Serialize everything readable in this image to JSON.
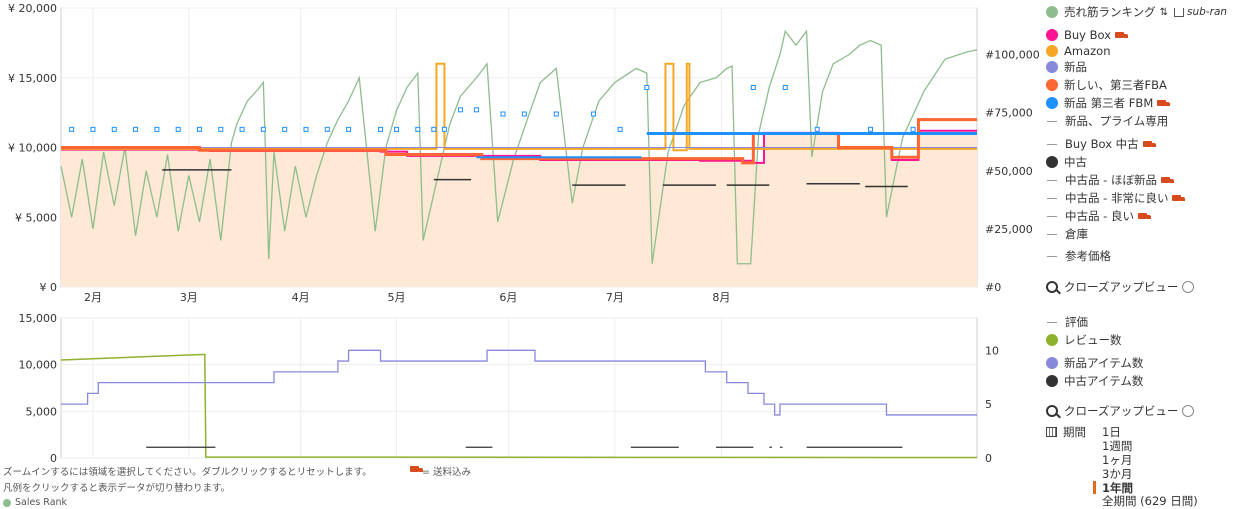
{
  "chart_data": [
    {
      "type": "line",
      "title": "",
      "x_months": [
        "2月",
        "3月",
        "4月",
        "5月",
        "6月",
        "7月",
        "8月"
      ],
      "y_left": {
        "ticks": [
          "¥ 0",
          "¥ 5,000",
          "¥ 10,000",
          "¥ 15,000",
          "¥ 20,000"
        ],
        "range": [
          0,
          20000
        ]
      },
      "y_right": {
        "ticks": [
          "#0",
          "#25,000",
          "#50,000",
          "#75,000",
          "#100,000"
        ],
        "range": [
          0,
          120000
        ]
      },
      "series": [
        {
          "name": "売れ筋ランキング",
          "color": "#8fbc8f",
          "axis": "right",
          "values": [
            [
              0.0,
              52000
            ],
            [
              0.2,
              30000
            ],
            [
              0.4,
              55000
            ],
            [
              0.6,
              25000
            ],
            [
              0.8,
              58000
            ],
            [
              1.0,
              35000
            ],
            [
              1.2,
              60000
            ],
            [
              1.4,
              22000
            ],
            [
              1.6,
              50000
            ],
            [
              1.8,
              30000
            ],
            [
              2.0,
              57000
            ],
            [
              2.2,
              24000
            ],
            [
              2.4,
              48000
            ],
            [
              2.6,
              28000
            ],
            [
              2.8,
              55000
            ],
            [
              3.0,
              20000
            ],
            [
              3.2,
              62000
            ],
            [
              3.3,
              70000
            ],
            [
              3.5,
              80000
            ],
            [
              3.7,
              85000
            ],
            [
              3.8,
              88000
            ],
            [
              3.9,
              12000
            ],
            [
              4.0,
              58000
            ],
            [
              4.2,
              24000
            ],
            [
              4.4,
              52000
            ],
            [
              4.6,
              30000
            ],
            [
              4.8,
              48000
            ],
            [
              5.0,
              62000
            ],
            [
              5.2,
              72000
            ],
            [
              5.4,
              80000
            ],
            [
              5.6,
              90000
            ],
            [
              5.9,
              24000
            ],
            [
              6.1,
              60000
            ],
            [
              6.3,
              76000
            ],
            [
              6.5,
              86000
            ],
            [
              6.7,
              92000
            ],
            [
              6.8,
              20000
            ],
            [
              7.0,
              40000
            ],
            [
              7.3,
              70000
            ],
            [
              7.5,
              82000
            ],
            [
              7.8,
              90000
            ],
            [
              8.0,
              96000
            ],
            [
              8.2,
              28000
            ],
            [
              8.5,
              55000
            ],
            [
              8.8,
              75000
            ],
            [
              9.0,
              88000
            ],
            [
              9.3,
              94000
            ],
            [
              9.6,
              36000
            ],
            [
              9.8,
              60000
            ],
            [
              10.1,
              80000
            ],
            [
              10.4,
              88000
            ],
            [
              10.8,
              94000
            ],
            [
              11.0,
              92000
            ],
            [
              11.1,
              10000
            ],
            [
              11.4,
              58000
            ],
            [
              11.7,
              78000
            ],
            [
              12.0,
              88000
            ],
            [
              12.3,
              90000
            ],
            [
              12.5,
              94000
            ],
            [
              12.6,
              95000
            ],
            [
              12.7,
              10000
            ],
            [
              12.95,
              10000
            ],
            [
              13.1,
              66000
            ],
            [
              13.3,
              86000
            ],
            [
              13.5,
              100000
            ],
            [
              13.6,
              110000
            ],
            [
              13.8,
              104000
            ],
            [
              14.0,
              110000
            ],
            [
              14.1,
              56000
            ],
            [
              14.3,
              84000
            ],
            [
              14.5,
              96000
            ],
            [
              14.8,
              100000
            ],
            [
              15.0,
              104000
            ],
            [
              15.2,
              106000
            ],
            [
              15.4,
              104000
            ],
            [
              15.5,
              30000
            ],
            [
              15.8,
              64000
            ],
            [
              16.2,
              84000
            ],
            [
              16.6,
              98000
            ],
            [
              17.0,
              101000
            ],
            [
              17.2,
              102000
            ]
          ]
        },
        {
          "name": "Buy Box",
          "color": "#ff1493",
          "axis": "left",
          "values": [
            [
              0.0,
              9850
            ],
            [
              2.6,
              9850
            ],
            [
              2.8,
              9750
            ],
            [
              6.0,
              9700
            ],
            [
              6.5,
              9400
            ],
            [
              9.0,
              9100
            ],
            [
              12.0,
              9050
            ],
            [
              13.0,
              8900
            ],
            [
              13.2,
              11050
            ],
            [
              14.5,
              11050
            ],
            [
              14.6,
              9900
            ],
            [
              15.5,
              9900
            ],
            [
              15.6,
              9100
            ],
            [
              16.0,
              9100
            ],
            [
              16.1,
              11200
            ],
            [
              17.2,
              11200
            ]
          ]
        },
        {
          "name": "Amazon",
          "color": "#f5a623",
          "axis": "left",
          "values": [
            [
              0.0,
              9900
            ],
            [
              7.0,
              9900
            ],
            [
              7.05,
              16000
            ],
            [
              7.15,
              16000
            ],
            [
              7.2,
              9900
            ],
            [
              11.3,
              9900
            ],
            [
              11.35,
              16000
            ],
            [
              11.45,
              16000
            ],
            [
              11.5,
              9800
            ],
            [
              11.7,
              9800
            ],
            [
              11.75,
              16000
            ],
            [
              11.8,
              9900
            ],
            [
              17.2,
              9900
            ]
          ]
        },
        {
          "name": "新品",
          "color": "#8888dd",
          "axis": "left",
          "values": [
            [
              0.0,
              10000
            ],
            [
              17.2,
              10000
            ]
          ]
        },
        {
          "name": "新しい、第三者FBA",
          "color": "#ff6633",
          "axis": "left",
          "values": [
            [
              0.0,
              10000
            ],
            [
              2.5,
              10000
            ],
            [
              2.6,
              9800
            ],
            [
              6.0,
              9800
            ],
            [
              6.1,
              9500
            ],
            [
              7.8,
              9500
            ],
            [
              7.9,
              9200
            ],
            [
              12.7,
              9200
            ],
            [
              12.8,
              8900
            ],
            [
              12.95,
              8900
            ],
            [
              13.0,
              11000
            ],
            [
              14.5,
              11000
            ],
            [
              14.6,
              10000
            ],
            [
              15.5,
              10000
            ],
            [
              15.6,
              9300
            ],
            [
              16.0,
              9300
            ],
            [
              16.1,
              12000
            ],
            [
              17.2,
              12000
            ]
          ]
        },
        {
          "name": "新品 第三者 FBM",
          "color": "#1e90ff",
          "axis": "left",
          "values": [
            [
              0.2,
              11300
            ],
            [
              0.6,
              11300
            ],
            [
              1.0,
              11300
            ],
            [
              1.4,
              11300
            ],
            [
              1.8,
              11300
            ],
            [
              2.2,
              11300
            ],
            [
              2.6,
              11300
            ],
            [
              3.0,
              11300
            ],
            [
              3.4,
              11300
            ],
            [
              3.8,
              11300
            ],
            [
              4.2,
              11300
            ],
            [
              4.6,
              11300
            ],
            [
              5.0,
              11300
            ],
            [
              5.4,
              11300
            ],
            [
              6.0,
              11300
            ],
            [
              6.3,
              11300
            ],
            [
              6.7,
              11300
            ],
            [
              7.0,
              11300
            ],
            [
              7.2,
              11300
            ],
            [
              7.5,
              12700
            ],
            [
              7.8,
              12700
            ],
            [
              8.3,
              12400
            ],
            [
              8.7,
              12400
            ],
            [
              9.3,
              12400
            ],
            [
              10.0,
              12400
            ],
            [
              10.5,
              11300
            ],
            [
              11.0,
              14300
            ],
            [
              13.0,
              14300
            ],
            [
              13.6,
              14300
            ],
            [
              14.2,
              11300
            ],
            [
              15.2,
              11300
            ],
            [
              16.0,
              11300
            ]
          ]
        },
        {
          "name": "中古",
          "color": "#333333",
          "axis": "left",
          "values": [
            [
              1.9,
              8400
            ],
            [
              3.2,
              8400
            ],
            [
              7.0,
              7700
            ],
            [
              7.7,
              7700
            ],
            [
              9.6,
              7300
            ],
            [
              10.6,
              7300
            ],
            [
              11.3,
              7300
            ],
            [
              12.3,
              7300
            ],
            [
              12.5,
              7300
            ],
            [
              13.3,
              7300
            ],
            [
              14.0,
              7400
            ],
            [
              15.0,
              7400
            ],
            [
              15.1,
              7200
            ],
            [
              15.9,
              7200
            ]
          ]
        }
      ]
    },
    {
      "type": "line",
      "title": "",
      "y_left": {
        "ticks": [
          "0",
          "5,000",
          "10,000",
          "15,000"
        ],
        "range": [
          0,
          15000
        ]
      },
      "y_right": {
        "ticks": [
          "0",
          "5",
          "10"
        ],
        "range": [
          0,
          13
        ]
      },
      "series": [
        {
          "name": "レビュー数",
          "color": "#8db32e",
          "axis": "left",
          "values": [
            [
              0.0,
              10500
            ],
            [
              2.7,
              11100
            ],
            [
              2.72,
              100
            ],
            [
              17.2,
              50
            ]
          ]
        },
        {
          "name": "新品アイテム数",
          "color": "#8888dd",
          "axis": "right",
          "values": [
            [
              0.0,
              5
            ],
            [
              0.5,
              6
            ],
            [
              0.7,
              7
            ],
            [
              3.8,
              7
            ],
            [
              4.0,
              8
            ],
            [
              5.2,
              9
            ],
            [
              5.4,
              10
            ],
            [
              6.0,
              9
            ],
            [
              7.9,
              9
            ],
            [
              8.0,
              10
            ],
            [
              8.8,
              10
            ],
            [
              8.9,
              9
            ],
            [
              11.9,
              9
            ],
            [
              12.1,
              8
            ],
            [
              12.5,
              7
            ],
            [
              12.8,
              7
            ],
            [
              12.9,
              6
            ],
            [
              13.2,
              5
            ],
            [
              13.4,
              4
            ],
            [
              13.5,
              5
            ],
            [
              15.4,
              5
            ],
            [
              15.5,
              4
            ],
            [
              17.2,
              4
            ]
          ]
        },
        {
          "name": "中古アイテム数",
          "color": "#333333",
          "axis": "right",
          "values": [
            [
              1.6,
              1
            ],
            [
              2.9,
              1
            ],
            [
              7.6,
              1
            ],
            [
              8.1,
              1
            ],
            [
              10.7,
              1
            ],
            [
              11.6,
              1
            ],
            [
              12.3,
              1
            ],
            [
              13.0,
              1
            ],
            [
              13.3,
              1
            ],
            [
              13.35,
              1
            ],
            [
              13.5,
              1
            ],
            [
              13.55,
              1
            ],
            [
              14.0,
              1
            ],
            [
              15.8,
              1
            ]
          ]
        }
      ]
    }
  ],
  "legend": {
    "sales_rank": "売れ筋ランキング",
    "sub_ranks": "sub-ran",
    "buy_box": "Buy Box",
    "amazon": "Amazon",
    "new": "新品",
    "new_fba": "新しい、第三者FBA",
    "new_fbm": "新品 第三者 FBM",
    "new_prime": "新品、プライム専用",
    "buy_box_used": "Buy Box 中古",
    "used": "中古",
    "used_like_new": "中古品 - ほぼ新品",
    "used_very_good": "中古品 - 非常に良い",
    "used_good": "中古品 - 良い",
    "warehouse": "倉庫",
    "list_price": "参考価格",
    "closeup": "クローズアップビュー",
    "rating": "評価",
    "review_count": "レビュー数",
    "new_offer_count": "新品アイテム数",
    "used_offer_count": "中古アイテム数",
    "closeup2": "クローズアップビュー"
  },
  "range": {
    "label": "期間",
    "options": [
      "1日",
      "1週間",
      "1ヶ月",
      "3か月",
      "1年間",
      "全期間 (629 日間)"
    ],
    "active": "1年間"
  },
  "notes": {
    "zoom": "ズームインするには領域を選択してください。ダブルクリックするとリセットします。",
    "shipping": "= 送料込み",
    "legend_tip": "凡例をクリックすると表示データが切り替わります。",
    "bottom_legend": "Sales Rank"
  }
}
